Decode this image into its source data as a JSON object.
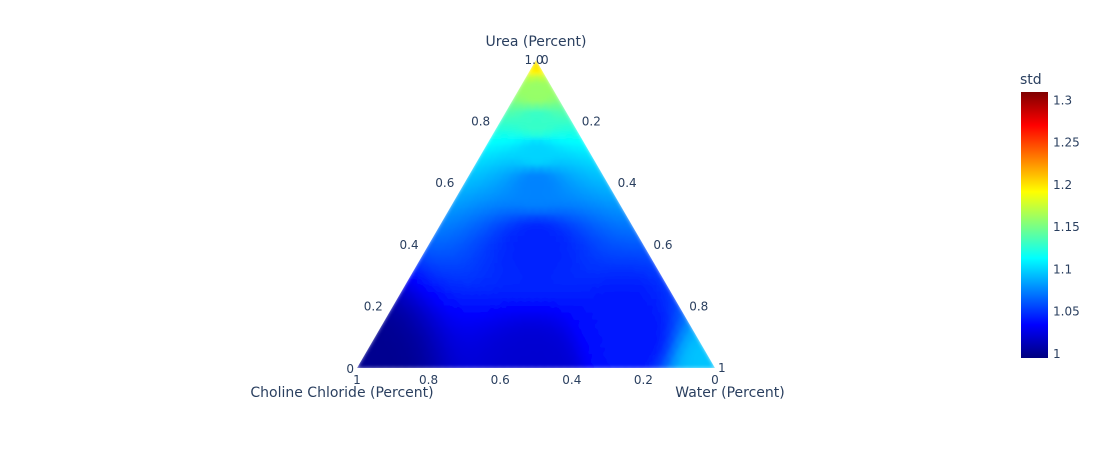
{
  "chart_data": {
    "type": "ternary_contour",
    "axes": {
      "a": {
        "title": "Urea (Percent)",
        "ticks": [
          "0.2",
          "0.4",
          "0.6",
          "0.8",
          "1.0"
        ],
        "tick_values": [
          0.2,
          0.4,
          0.6,
          0.8,
          1.0
        ],
        "corner_zero": "0"
      },
      "b": {
        "title": "Choline Chloride (Percent)",
        "ticks": [
          "1",
          "0.8",
          "0.6",
          "0.4",
          "0.2",
          "0"
        ],
        "tick_values": [
          1,
          0.8,
          0.6,
          0.4,
          0.2,
          0
        ]
      },
      "c": {
        "title": "Water (Percent)",
        "ticks": [
          "0.2",
          "0.4",
          "0.6",
          "0.8",
          "1"
        ],
        "tick_values": [
          0.2,
          0.4,
          0.6,
          0.8,
          1
        ],
        "corner_zero": "0"
      }
    },
    "colorbar": {
      "title": "std",
      "ticks": [
        "1",
        "1.05",
        "1.1",
        "1.15",
        "1.2",
        "1.25",
        "1.3"
      ],
      "tick_values": [
        1,
        1.05,
        1.1,
        1.15,
        1.2,
        1.25,
        1.3
      ],
      "range": [
        0.995,
        1.31
      ],
      "colorscale": [
        [
          0.0,
          "#00007f"
        ],
        [
          0.125,
          "#0000ff"
        ],
        [
          0.25,
          "#007fff"
        ],
        [
          0.375,
          "#00ffff"
        ],
        [
          0.5,
          "#7fff7f"
        ],
        [
          0.625,
          "#ffff00"
        ],
        [
          0.75,
          "#ff7f00"
        ],
        [
          0.875,
          "#ff0000"
        ],
        [
          1.0,
          "#7f0000"
        ]
      ]
    },
    "field_anchor_points": [
      {
        "a": 1.0,
        "b": 0.0,
        "c": 0.0,
        "std": 1.2
      },
      {
        "a": 0.9,
        "b": 0.05,
        "c": 0.05,
        "std": 1.16
      },
      {
        "a": 0.8,
        "b": 0.1,
        "c": 0.1,
        "std": 1.13
      },
      {
        "a": 0.7,
        "b": 0.15,
        "c": 0.15,
        "std": 1.1
      },
      {
        "a": 0.6,
        "b": 0.2,
        "c": 0.2,
        "std": 1.075
      },
      {
        "a": 0.4,
        "b": 0.3,
        "c": 0.3,
        "std": 1.045
      },
      {
        "a": 0.0,
        "b": 1.0,
        "c": 0.0,
        "std": 1.0
      },
      {
        "a": 0.0,
        "b": 0.5,
        "c": 0.5,
        "std": 1.02
      },
      {
        "a": 0.1,
        "b": 0.2,
        "c": 0.7,
        "std": 1.04
      },
      {
        "a": 0.0,
        "b": 0.0,
        "c": 1.0,
        "std": 1.095
      }
    ]
  }
}
